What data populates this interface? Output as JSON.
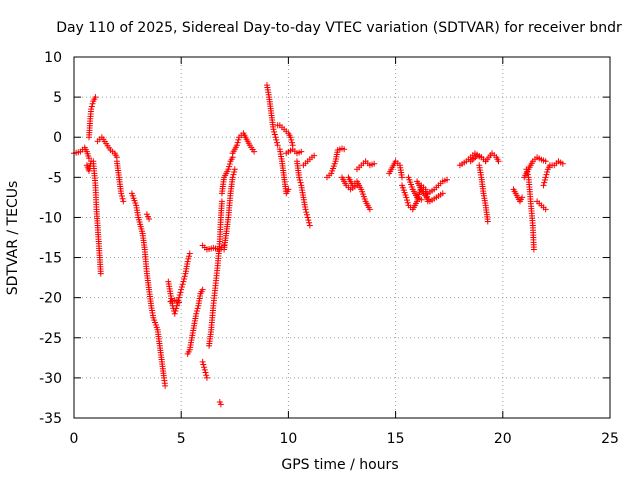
{
  "chart_data": {
    "type": "scatter",
    "title": "Day 110 of 2025, Sidereal Day-to-day VTEC variation (SDTVAR) for receiver bndr",
    "xlabel": "GPS time / hours",
    "ylabel": "SDTVAR / TECUs",
    "xlim": [
      0,
      25
    ],
    "ylim": [
      -35,
      10
    ],
    "xticks": [
      0,
      5,
      10,
      15,
      20,
      25
    ],
    "yticks": [
      10,
      5,
      0,
      -5,
      -10,
      -15,
      -20,
      -25,
      -30,
      -35
    ],
    "grid": true,
    "marker": "+",
    "series_color": "#ff0000",
    "series": [
      {
        "name": "SDTVAR",
        "segments": [
          [
            [
              0.0,
              -2
            ],
            [
              0.3,
              -1.8
            ],
            [
              0.5,
              -1.3
            ],
            [
              0.6,
              -1.8
            ],
            [
              0.7,
              -2.6
            ]
          ],
          [
            [
              0.6,
              -3.5
            ],
            [
              0.7,
              -4.2
            ],
            [
              0.8,
              -3
            ]
          ],
          [
            [
              0.7,
              0
            ],
            [
              0.75,
              2
            ],
            [
              0.8,
              3.5
            ],
            [
              0.9,
              4.5
            ],
            [
              1.0,
              5
            ]
          ],
          [
            [
              0.9,
              -3
            ],
            [
              1.0,
              -6
            ],
            [
              1.05,
              -9
            ],
            [
              1.1,
              -11
            ],
            [
              1.15,
              -13
            ],
            [
              1.2,
              -15
            ],
            [
              1.25,
              -17
            ]
          ],
          [
            [
              1.1,
              -0.5
            ],
            [
              1.3,
              0
            ],
            [
              1.5,
              -0.8
            ],
            [
              1.7,
              -1.6
            ],
            [
              1.9,
              -2
            ],
            [
              2.0,
              -2.5
            ]
          ],
          [
            [
              2.0,
              -3
            ],
            [
              2.1,
              -5
            ],
            [
              2.2,
              -7
            ],
            [
              2.3,
              -8
            ]
          ],
          [
            [
              2.7,
              -7
            ],
            [
              2.9,
              -8.5
            ],
            [
              3.0,
              -10
            ],
            [
              3.2,
              -12
            ],
            [
              3.3,
              -14
            ],
            [
              3.4,
              -17
            ],
            [
              3.5,
              -19
            ],
            [
              3.6,
              -21
            ],
            [
              3.7,
              -22.5
            ],
            [
              3.9,
              -24
            ],
            [
              4.0,
              -26
            ],
            [
              4.1,
              -28
            ],
            [
              4.2,
              -30
            ],
            [
              4.25,
              -31
            ]
          ],
          [
            [
              3.4,
              -9.6
            ],
            [
              3.5,
              -10.2
            ]
          ],
          [
            [
              4.4,
              -18
            ],
            [
              4.5,
              -19.5
            ],
            [
              4.6,
              -21
            ],
            [
              4.7,
              -22
            ],
            [
              4.8,
              -21
            ],
            [
              4.9,
              -20
            ],
            [
              5.0,
              -19
            ],
            [
              5.1,
              -18
            ],
            [
              5.2,
              -17
            ],
            [
              5.3,
              -15.5
            ],
            [
              5.4,
              -14.5
            ]
          ],
          [
            [
              4.5,
              -20.5
            ],
            [
              4.7,
              -20.3
            ],
            [
              4.9,
              -20.6
            ]
          ],
          [
            [
              5.3,
              -27
            ],
            [
              5.4,
              -26.5
            ],
            [
              5.5,
              -25
            ],
            [
              5.6,
              -23.5
            ],
            [
              5.7,
              -22
            ],
            [
              5.8,
              -21
            ],
            [
              5.9,
              -19.5
            ],
            [
              6.0,
              -19
            ]
          ],
          [
            [
              6.0,
              -13.5
            ],
            [
              6.2,
              -14
            ],
            [
              6.5,
              -13.8
            ],
            [
              6.8,
              -14
            ],
            [
              7.0,
              -13.5
            ]
          ],
          [
            [
              6.0,
              -28
            ],
            [
              6.1,
              -29
            ],
            [
              6.2,
              -30
            ]
          ],
          [
            [
              6.3,
              -26
            ],
            [
              6.4,
              -24
            ],
            [
              6.5,
              -21
            ],
            [
              6.6,
              -18.5
            ],
            [
              6.7,
              -16
            ],
            [
              6.8,
              -13
            ],
            [
              6.85,
              -10
            ],
            [
              6.9,
              -8
            ]
          ],
          [
            [
              6.9,
              -7
            ],
            [
              7.0,
              -5
            ],
            [
              7.2,
              -4
            ],
            [
              7.3,
              -3
            ],
            [
              7.4,
              -2.5
            ]
          ],
          [
            [
              7.0,
              -14
            ],
            [
              7.1,
              -12
            ],
            [
              7.2,
              -10
            ],
            [
              7.3,
              -7
            ],
            [
              7.4,
              -5
            ],
            [
              7.5,
              -4
            ]
          ],
          [
            [
              6.8,
              -33
            ],
            [
              6.85,
              -33.3
            ]
          ],
          [
            [
              7.4,
              -2
            ],
            [
              7.6,
              -1
            ],
            [
              7.7,
              0
            ],
            [
              7.9,
              0.5
            ],
            [
              8.0,
              0
            ],
            [
              8.2,
              -1
            ],
            [
              8.4,
              -1.8
            ]
          ],
          [
            [
              9.0,
              6.5
            ],
            [
              9.1,
              5
            ],
            [
              9.2,
              3
            ],
            [
              9.3,
              1
            ],
            [
              9.4,
              0
            ],
            [
              9.5,
              -1
            ]
          ],
          [
            [
              9.5,
              1.5
            ],
            [
              9.6,
              1.5
            ],
            [
              9.8,
              1
            ],
            [
              10.0,
              0.5
            ],
            [
              10.1,
              0
            ],
            [
              10.2,
              -1
            ]
          ],
          [
            [
              9.6,
              -1.5
            ],
            [
              9.7,
              -3
            ],
            [
              9.8,
              -5
            ],
            [
              9.9,
              -7
            ],
            [
              10.0,
              -6.5
            ]
          ],
          [
            [
              9.9,
              -2
            ],
            [
              10.2,
              -1.5
            ],
            [
              10.4,
              -2
            ],
            [
              10.6,
              -1.8
            ]
          ],
          [
            [
              10.4,
              -3
            ],
            [
              10.5,
              -5
            ],
            [
              10.6,
              -6
            ],
            [
              10.7,
              -7.5
            ],
            [
              10.8,
              -9
            ],
            [
              10.9,
              -10
            ],
            [
              11.0,
              -11
            ]
          ],
          [
            [
              10.7,
              -3.5
            ],
            [
              10.9,
              -3
            ],
            [
              11.1,
              -2.5
            ],
            [
              11.2,
              -2.3
            ]
          ],
          [
            [
              11.8,
              -5
            ],
            [
              12.0,
              -4.5
            ],
            [
              12.2,
              -3
            ],
            [
              12.3,
              -1.6
            ],
            [
              12.5,
              -1.4
            ],
            [
              12.6,
              -1.5
            ]
          ],
          [
            [
              12.5,
              -5
            ],
            [
              12.7,
              -6
            ],
            [
              12.9,
              -6.5
            ],
            [
              13.2,
              -6
            ]
          ],
          [
            [
              12.8,
              -5
            ],
            [
              13.0,
              -6
            ],
            [
              13.2,
              -5.5
            ],
            [
              13.4,
              -6.5
            ],
            [
              13.6,
              -8
            ],
            [
              13.8,
              -9
            ]
          ],
          [
            [
              13.2,
              -4
            ],
            [
              13.4,
              -3.5
            ],
            [
              13.6,
              -3
            ],
            [
              13.8,
              -3.5
            ],
            [
              14.0,
              -3.3
            ]
          ],
          [
            [
              14.7,
              -4.5
            ],
            [
              14.9,
              -3.5
            ],
            [
              15.0,
              -3
            ],
            [
              15.2,
              -3.5
            ],
            [
              15.3,
              -5
            ]
          ],
          [
            [
              15.3,
              -6
            ],
            [
              15.5,
              -7.5
            ],
            [
              15.6,
              -8.5
            ],
            [
              15.8,
              -9
            ],
            [
              16.0,
              -8
            ],
            [
              16.2,
              -6
            ],
            [
              16.4,
              -6.5
            ],
            [
              16.5,
              -8
            ]
          ],
          [
            [
              15.6,
              -5
            ],
            [
              15.8,
              -6.5
            ],
            [
              16.0,
              -7.5
            ],
            [
              16.2,
              -7.8
            ]
          ],
          [
            [
              16.0,
              -5.5
            ],
            [
              16.3,
              -7
            ],
            [
              16.6,
              -8
            ],
            [
              16.9,
              -7.5
            ],
            [
              17.2,
              -7
            ]
          ],
          [
            [
              16.5,
              -7
            ],
            [
              16.8,
              -6.5
            ],
            [
              17.0,
              -6
            ],
            [
              17.2,
              -5.5
            ],
            [
              17.4,
              -5.3
            ]
          ],
          [
            [
              18.0,
              -3.5
            ],
            [
              18.3,
              -3
            ],
            [
              18.5,
              -2.5
            ],
            [
              18.7,
              -2
            ],
            [
              19.0,
              -2.5
            ],
            [
              19.2,
              -3
            ]
          ],
          [
            [
              18.5,
              -3
            ],
            [
              18.8,
              -2.3
            ],
            [
              19.0,
              -2.5
            ]
          ],
          [
            [
              18.9,
              -3.5
            ],
            [
              19.0,
              -5
            ],
            [
              19.1,
              -7
            ],
            [
              19.2,
              -8.5
            ],
            [
              19.3,
              -10.5
            ]
          ],
          [
            [
              19.2,
              -3
            ],
            [
              19.5,
              -2
            ],
            [
              19.7,
              -2.5
            ],
            [
              19.8,
              -3
            ]
          ],
          [
            [
              20.5,
              -6.5
            ],
            [
              20.6,
              -7
            ],
            [
              20.7,
              -7.5
            ],
            [
              20.8,
              -8
            ],
            [
              20.9,
              -7.5
            ]
          ],
          [
            [
              21.1,
              -4
            ],
            [
              21.2,
              -5
            ],
            [
              21.3,
              -8
            ],
            [
              21.4,
              -11
            ],
            [
              21.45,
              -14
            ]
          ],
          [
            [
              21.0,
              -5
            ],
            [
              21.2,
              -4
            ],
            [
              21.4,
              -3
            ],
            [
              21.6,
              -2.5
            ],
            [
              21.8,
              -2.8
            ],
            [
              22.0,
              -3
            ]
          ],
          [
            [
              21.6,
              -8
            ],
            [
              21.8,
              -8.5
            ],
            [
              22.0,
              -9
            ]
          ],
          [
            [
              21.9,
              -6
            ],
            [
              22.0,
              -5
            ],
            [
              22.1,
              -4
            ],
            [
              22.2,
              -3.5
            ],
            [
              22.4,
              -3.5
            ],
            [
              22.6,
              -3
            ],
            [
              22.8,
              -3.3
            ]
          ]
        ]
      }
    ]
  }
}
